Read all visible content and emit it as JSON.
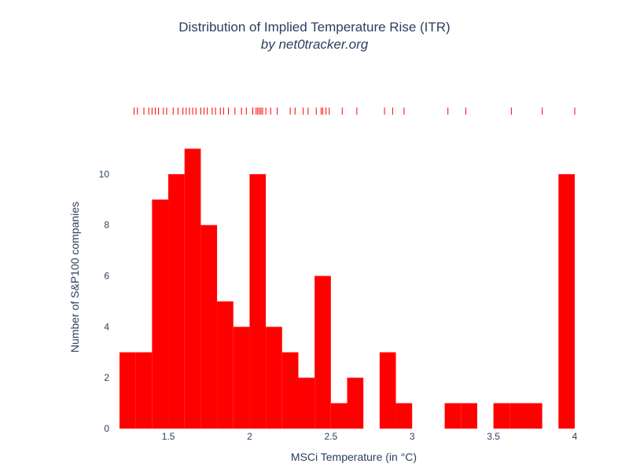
{
  "chart_data": {
    "type": "bar",
    "title": "Distribution of Implied Temperature Rise (ITR)",
    "subtitle": "by net0tracker.org",
    "xlabel": "MSCi Temperature (in °C)",
    "ylabel": "Number of S&P100 companies",
    "xlim": [
      1.2,
      4.0
    ],
    "ylim": [
      0,
      11.6
    ],
    "x_ticks": [
      1.5,
      2,
      2.5,
      3,
      3.5,
      4
    ],
    "x_tick_labels": [
      "1.5",
      "2",
      "2.5",
      "3",
      "3.5",
      "4"
    ],
    "y_ticks": [
      0,
      2,
      4,
      6,
      8,
      10
    ],
    "y_tick_labels": [
      "0",
      "2",
      "4",
      "6",
      "8",
      "10"
    ],
    "bin_width": 0.1,
    "bins": [
      {
        "start": 1.2,
        "end": 1.3,
        "count": 3
      },
      {
        "start": 1.3,
        "end": 1.4,
        "count": 3
      },
      {
        "start": 1.4,
        "end": 1.5,
        "count": 9
      },
      {
        "start": 1.5,
        "end": 1.6,
        "count": 10
      },
      {
        "start": 1.6,
        "end": 1.7,
        "count": 11
      },
      {
        "start": 1.7,
        "end": 1.8,
        "count": 8
      },
      {
        "start": 1.8,
        "end": 1.9,
        "count": 5
      },
      {
        "start": 1.9,
        "end": 2.0,
        "count": 4
      },
      {
        "start": 2.0,
        "end": 2.1,
        "count": 10
      },
      {
        "start": 2.1,
        "end": 2.2,
        "count": 4
      },
      {
        "start": 2.2,
        "end": 2.3,
        "count": 3
      },
      {
        "start": 2.3,
        "end": 2.4,
        "count": 2
      },
      {
        "start": 2.4,
        "end": 2.5,
        "count": 6
      },
      {
        "start": 2.5,
        "end": 2.6,
        "count": 1
      },
      {
        "start": 2.6,
        "end": 2.7,
        "count": 2
      },
      {
        "start": 2.7,
        "end": 2.8,
        "count": 0
      },
      {
        "start": 2.8,
        "end": 2.9,
        "count": 3
      },
      {
        "start": 2.9,
        "end": 3.0,
        "count": 1
      },
      {
        "start": 3.0,
        "end": 3.1,
        "count": 0
      },
      {
        "start": 3.1,
        "end": 3.2,
        "count": 0
      },
      {
        "start": 3.2,
        "end": 3.3,
        "count": 1
      },
      {
        "start": 3.3,
        "end": 3.4,
        "count": 1
      },
      {
        "start": 3.4,
        "end": 3.5,
        "count": 0
      },
      {
        "start": 3.5,
        "end": 3.6,
        "count": 1
      },
      {
        "start": 3.6,
        "end": 3.7,
        "count": 1
      },
      {
        "start": 3.7,
        "end": 3.8,
        "count": 1
      },
      {
        "start": 3.8,
        "end": 3.9,
        "count": 0
      },
      {
        "start": 3.9,
        "end": 4.0,
        "count": 10
      }
    ],
    "rug_values": [
      1.29,
      1.31,
      1.35,
      1.38,
      1.4,
      1.42,
      1.44,
      1.47,
      1.49,
      1.53,
      1.56,
      1.59,
      1.61,
      1.63,
      1.65,
      1.67,
      1.7,
      1.72,
      1.74,
      1.77,
      1.79,
      1.82,
      1.84,
      1.87,
      1.91,
      1.95,
      1.98,
      2.02,
      2.04,
      2.05,
      2.06,
      2.07,
      2.08,
      2.1,
      2.13,
      2.17,
      2.25,
      2.28,
      2.33,
      2.36,
      2.41,
      2.44,
      2.45,
      2.47,
      2.49,
      2.57,
      2.66,
      2.83,
      2.88,
      2.95,
      3.22,
      3.33,
      3.61,
      3.8,
      4.0
    ],
    "colors": {
      "bar": "#ff0000",
      "rug": "#ff0000"
    },
    "grid": false,
    "legend": "none"
  }
}
